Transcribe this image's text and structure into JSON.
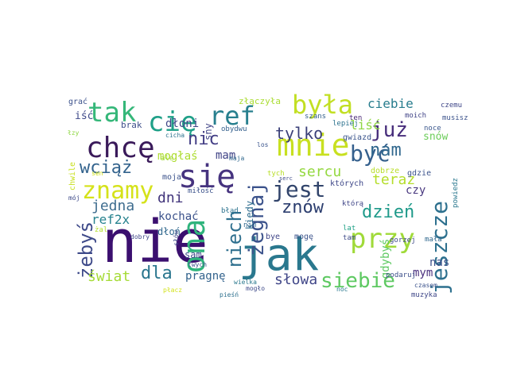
{
  "wordcloud": {
    "words": [
      {
        "text": "nie",
        "color": "#3b0f6f",
        "vertical": false
      },
      {
        "text": "jak",
        "color": "#2a788e",
        "vertical": false
      },
      {
        "text": "się",
        "color": "#46337f",
        "vertical": false
      },
      {
        "text": "mnie",
        "color": "#c8e020",
        "vertical": false
      },
      {
        "text": "przy",
        "color": "#a0da39",
        "vertical": false
      },
      {
        "text": "chcę",
        "color": "#3a1a5a",
        "vertical": false
      },
      {
        "text": "tak",
        "color": "#35b779",
        "vertical": false
      },
      {
        "text": "cię",
        "color": "#1fa088",
        "vertical": false
      },
      {
        "text": "ref",
        "color": "#277f8e",
        "vertical": false
      },
      {
        "text": "była",
        "color": "#c2df23",
        "vertical": false
      },
      {
        "text": "ona",
        "color": "#2fb47c",
        "vertical": true
      },
      {
        "text": "znamy",
        "color": "#d5e21a",
        "vertical": false
      },
      {
        "text": "jest",
        "color": "#31446b",
        "vertical": false
      },
      {
        "text": "być",
        "color": "#35608d",
        "vertical": false
      },
      {
        "text": "jeszcze",
        "color": "#2d708e",
        "vertical": true
      },
      {
        "text": "żegnaj",
        "color": "#3b528b",
        "vertical": true
      },
      {
        "text": "siebie",
        "color": "#5ec962",
        "vertical": false
      },
      {
        "text": "już",
        "color": "#472d7b",
        "vertical": false
      },
      {
        "text": "nam",
        "color": "#31688e",
        "vertical": false
      },
      {
        "text": "nic",
        "color": "#433e85",
        "vertical": false
      },
      {
        "text": "wciąż",
        "color": "#33638d",
        "vertical": false
      },
      {
        "text": "żebyś",
        "color": "#3e4a89",
        "vertical": true
      },
      {
        "text": "niech",
        "color": "#2e6f8e",
        "vertical": true
      },
      {
        "text": "znów",
        "color": "#2c3e6f",
        "vertical": false
      },
      {
        "text": "dzień",
        "color": "#1f9a8a",
        "vertical": false
      },
      {
        "text": "tylko",
        "color": "#3a3f78",
        "vertical": false
      },
      {
        "text": "ciebie",
        "color": "#287d8e",
        "vertical": false
      },
      {
        "text": "teraz",
        "color": "#b5de2b",
        "vertical": false
      },
      {
        "text": "dla",
        "color": "#2a768e",
        "vertical": false
      },
      {
        "text": "jedna",
        "color": "#3f6d8f",
        "vertical": false
      },
      {
        "text": "dni",
        "color": "#40337a",
        "vertical": false
      },
      {
        "text": "słowa",
        "color": "#404688",
        "vertical": false
      },
      {
        "text": "świat",
        "color": "#a5db36",
        "vertical": false
      },
      {
        "text": "sercu",
        "color": "#94d840",
        "vertical": false
      },
      {
        "text": "mogłaś",
        "color": "#addc30",
        "vertical": false
      },
      {
        "text": "mam",
        "color": "#414487",
        "vertical": false
      },
      {
        "text": "kochać",
        "color": "#3b528b",
        "vertical": false
      },
      {
        "text": "ref2x",
        "color": "#26828e",
        "vertical": false
      },
      {
        "text": "dłoni",
        "color": "#404688",
        "vertical": false
      },
      {
        "text": "liść",
        "color": "#8fd744",
        "vertical": false
      },
      {
        "text": "snów",
        "color": "#6ccd5a",
        "vertical": false
      },
      {
        "text": "czy",
        "color": "#48387f",
        "vertical": false
      },
      {
        "text": "gdybyś",
        "color": "#5ec962",
        "vertical": true
      },
      {
        "text": "nas",
        "color": "#3c4f8a",
        "vertical": false
      },
      {
        "text": "mym",
        "color": "#4a2f7e",
        "vertical": false
      },
      {
        "text": "pragnę",
        "color": "#33638d",
        "vertical": false
      },
      {
        "text": "sam",
        "color": "#3e4989",
        "vertical": false
      },
      {
        "text": "dłoń",
        "color": "#30688e",
        "vertical": false
      },
      {
        "text": "iść",
        "color": "#3e4989",
        "vertical": false
      },
      {
        "text": "sny",
        "color": "#414487",
        "vertical": true
      },
      {
        "text": "grać",
        "color": "#3b518b",
        "vertical": false
      },
      {
        "text": "brak",
        "color": "#3d4e8a",
        "vertical": false
      },
      {
        "text": "złączyła",
        "color": "#aadc32",
        "vertical": false
      },
      {
        "text": "czemu",
        "color": "#3f4788",
        "vertical": false
      },
      {
        "text": "chwile",
        "color": "#c8e020",
        "vertical": true
      },
      {
        "text": "miłość",
        "color": "#3b528b",
        "vertical": false
      },
      {
        "text": "kiedy",
        "color": "#2e6d8e",
        "vertical": true
      },
      {
        "text": "których",
        "color": "#3f4889",
        "vertical": false
      },
      {
        "text": "gwiazd",
        "color": "#3a548c",
        "vertical": false
      },
      {
        "text": "lepiej",
        "color": "#2c728e",
        "vertical": false
      },
      {
        "text": "szans",
        "color": "#35608d",
        "vertical": false
      },
      {
        "text": "ten",
        "color": "#482576",
        "vertical": false
      },
      {
        "text": "moich",
        "color": "#414487",
        "vertical": false
      },
      {
        "text": "musisz",
        "color": "#3b528b",
        "vertical": false
      },
      {
        "text": "noce",
        "color": "#39568c",
        "vertical": false
      },
      {
        "text": "dobrze",
        "color": "#b8de29",
        "vertical": false
      },
      {
        "text": "gdzie",
        "color": "#3b528b",
        "vertical": false
      },
      {
        "text": "powiedz",
        "color": "#2a788e",
        "vertical": true
      },
      {
        "text": "którą",
        "color": "#404688",
        "vertical": false
      },
      {
        "text": "lat",
        "color": "#1fa187",
        "vertical": false
      },
      {
        "text": "tam",
        "color": "#3e4a89",
        "vertical": false
      },
      {
        "text": "mała",
        "color": "#31688e",
        "vertical": false
      },
      {
        "text": "gorzej",
        "color": "#3e4a89",
        "vertical": false
      },
      {
        "text": "podaruj",
        "color": "#3c4f8a",
        "vertical": false
      },
      {
        "text": "muzyka",
        "color": "#3f4788",
        "vertical": false
      },
      {
        "text": "bye",
        "color": "#404688",
        "vertical": false
      },
      {
        "text": "mogę",
        "color": "#3b528b",
        "vertical": false
      },
      {
        "text": "błąd",
        "color": "#2c728e",
        "vertical": false
      },
      {
        "text": "nim",
        "color": "#30688e",
        "vertical": false
      },
      {
        "text": "moja",
        "color": "#3b528b",
        "vertical": false
      },
      {
        "text": "obydwu",
        "color": "#35608d",
        "vertical": false
      },
      {
        "text": "ale",
        "color": "#a2da37",
        "vertical": false
      },
      {
        "text": "cicha",
        "color": "#2c728e",
        "vertical": false
      },
      {
        "text": "los",
        "color": "#3a548c",
        "vertical": false
      },
      {
        "text": "maja",
        "color": "#31688e",
        "vertical": false
      },
      {
        "text": "dobry",
        "color": "#3f4788",
        "vertical": false
      },
      {
        "text": "żal",
        "color": "#b2dd2d",
        "vertical": false
      },
      {
        "text": "twych",
        "color": "#3b528b",
        "vertical": false
      },
      {
        "text": "mogło",
        "color": "#3e4a89",
        "vertical": false
      },
      {
        "text": "słów",
        "color": "#3e4989",
        "vertical": true
      },
      {
        "text": "pieśń",
        "color": "#2d708e",
        "vertical": false
      },
      {
        "text": "wielka",
        "color": "#2a788e",
        "vertical": false
      },
      {
        "text": "płacz",
        "color": "#d2e21b",
        "vertical": false
      },
      {
        "text": "noc",
        "color": "#2a788e",
        "vertical": false
      },
      {
        "text": "czasem",
        "color": "#3b528b",
        "vertical": false
      },
      {
        "text": "tych",
        "color": "#b8de29",
        "vertical": false
      },
      {
        "text": "sen",
        "color": "#d2e21b",
        "vertical": false
      },
      {
        "text": "serc",
        "color": "#3e4a89",
        "vertical": false
      },
      {
        "text": "łzy",
        "color": "#8fd744",
        "vertical": false
      },
      {
        "text": "mój",
        "color": "#3e4a89",
        "vertical": false
      }
    ]
  }
}
